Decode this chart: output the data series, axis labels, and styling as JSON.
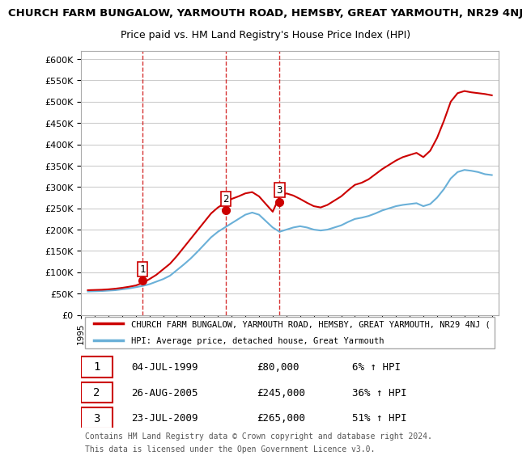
{
  "title": "CHURCH FARM BUNGALOW, YARMOUTH ROAD, HEMSBY, GREAT YARMOUTH, NR29 4NJ",
  "subtitle": "Price paid vs. HM Land Registry's House Price Index (HPI)",
  "legend_property": "CHURCH FARM BUNGALOW, YARMOUTH ROAD, HEMSBY, GREAT YARMOUTH, NR29 4NJ (",
  "legend_hpi": "HPI: Average price, detached house, Great Yarmouth",
  "sale_dates": [
    "1999-07-04",
    "2005-08-26",
    "2009-07-23"
  ],
  "sale_prices": [
    80000,
    245000,
    265000
  ],
  "sale_labels": [
    "1",
    "2",
    "3"
  ],
  "sale_info": [
    {
      "label": "1",
      "date": "04-JUL-1999",
      "price": "£80,000",
      "hpi": "6% ↑ HPI"
    },
    {
      "label": "2",
      "date": "26-AUG-2005",
      "price": "£245,000",
      "hpi": "36% ↑ HPI"
    },
    {
      "label": "3",
      "date": "23-JUL-2009",
      "price": "£265,000",
      "hpi": "51% ↑ HPI"
    }
  ],
  "hpi_line_color": "#6ab0d8",
  "property_line_color": "#cc0000",
  "sale_marker_color": "#cc0000",
  "dashed_line_color": "#cc0000",
  "ylim": [
    0,
    620000
  ],
  "yticks": [
    0,
    50000,
    100000,
    150000,
    200000,
    250000,
    300000,
    350000,
    400000,
    450000,
    500000,
    550000,
    600000
  ],
  "grid_color": "#cccccc",
  "background_color": "#ffffff",
  "footer_line1": "Contains HM Land Registry data © Crown copyright and database right 2024.",
  "footer_line2": "This data is licensed under the Open Government Licence v3.0.",
  "hpi_data_x": [
    1995.5,
    1996.0,
    1996.5,
    1997.0,
    1997.5,
    1998.0,
    1998.5,
    1999.0,
    1999.5,
    2000.0,
    2000.5,
    2001.0,
    2001.5,
    2002.0,
    2002.5,
    2003.0,
    2003.5,
    2004.0,
    2004.5,
    2005.0,
    2005.5,
    2006.0,
    2006.5,
    2007.0,
    2007.5,
    2008.0,
    2008.5,
    2009.0,
    2009.5,
    2010.0,
    2010.5,
    2011.0,
    2011.5,
    2012.0,
    2012.5,
    2013.0,
    2013.5,
    2014.0,
    2014.5,
    2015.0,
    2015.5,
    2016.0,
    2016.5,
    2017.0,
    2017.5,
    2018.0,
    2018.5,
    2019.0,
    2019.5,
    2020.0,
    2020.5,
    2021.0,
    2021.5,
    2022.0,
    2022.5,
    2023.0,
    2023.5,
    2024.0,
    2024.5,
    2025.0
  ],
  "hpi_data_y": [
    55000,
    55500,
    56000,
    57000,
    58000,
    60000,
    62000,
    65000,
    68000,
    72000,
    78000,
    84000,
    92000,
    105000,
    118000,
    132000,
    148000,
    165000,
    182000,
    195000,
    205000,
    215000,
    225000,
    235000,
    240000,
    235000,
    220000,
    205000,
    195000,
    200000,
    205000,
    208000,
    205000,
    200000,
    198000,
    200000,
    205000,
    210000,
    218000,
    225000,
    228000,
    232000,
    238000,
    245000,
    250000,
    255000,
    258000,
    260000,
    262000,
    255000,
    260000,
    275000,
    295000,
    320000,
    335000,
    340000,
    338000,
    335000,
    330000,
    328000
  ],
  "property_data_x": [
    1995.5,
    1996.0,
    1996.5,
    1997.0,
    1997.5,
    1998.0,
    1998.5,
    1999.0,
    1999.5,
    2000.0,
    2000.5,
    2001.0,
    2001.5,
    2002.0,
    2002.5,
    2003.0,
    2003.5,
    2004.0,
    2004.5,
    2005.0,
    2005.5,
    2006.0,
    2006.5,
    2007.0,
    2007.5,
    2008.0,
    2008.5,
    2009.0,
    2009.5,
    2010.0,
    2010.5,
    2011.0,
    2011.5,
    2012.0,
    2012.5,
    2013.0,
    2013.5,
    2014.0,
    2014.5,
    2015.0,
    2015.5,
    2016.0,
    2016.5,
    2017.0,
    2017.5,
    2018.0,
    2018.5,
    2019.0,
    2019.5,
    2020.0,
    2020.5,
    2021.0,
    2021.5,
    2022.0,
    2022.5,
    2023.0,
    2023.5,
    2024.0,
    2024.5,
    2025.0
  ],
  "property_data_y": [
    58000,
    58500,
    59000,
    60000,
    61500,
    63500,
    66000,
    69000,
    75000,
    84000,
    94000,
    107000,
    120000,
    138000,
    158000,
    178000,
    198000,
    218000,
    238000,
    252000,
    262000,
    272000,
    278000,
    285000,
    288000,
    278000,
    260000,
    242000,
    278000,
    285000,
    280000,
    272000,
    263000,
    255000,
    252000,
    258000,
    268000,
    278000,
    292000,
    305000,
    310000,
    318000,
    330000,
    342000,
    352000,
    362000,
    370000,
    375000,
    380000,
    370000,
    385000,
    415000,
    455000,
    500000,
    520000,
    525000,
    522000,
    520000,
    518000,
    515000
  ]
}
